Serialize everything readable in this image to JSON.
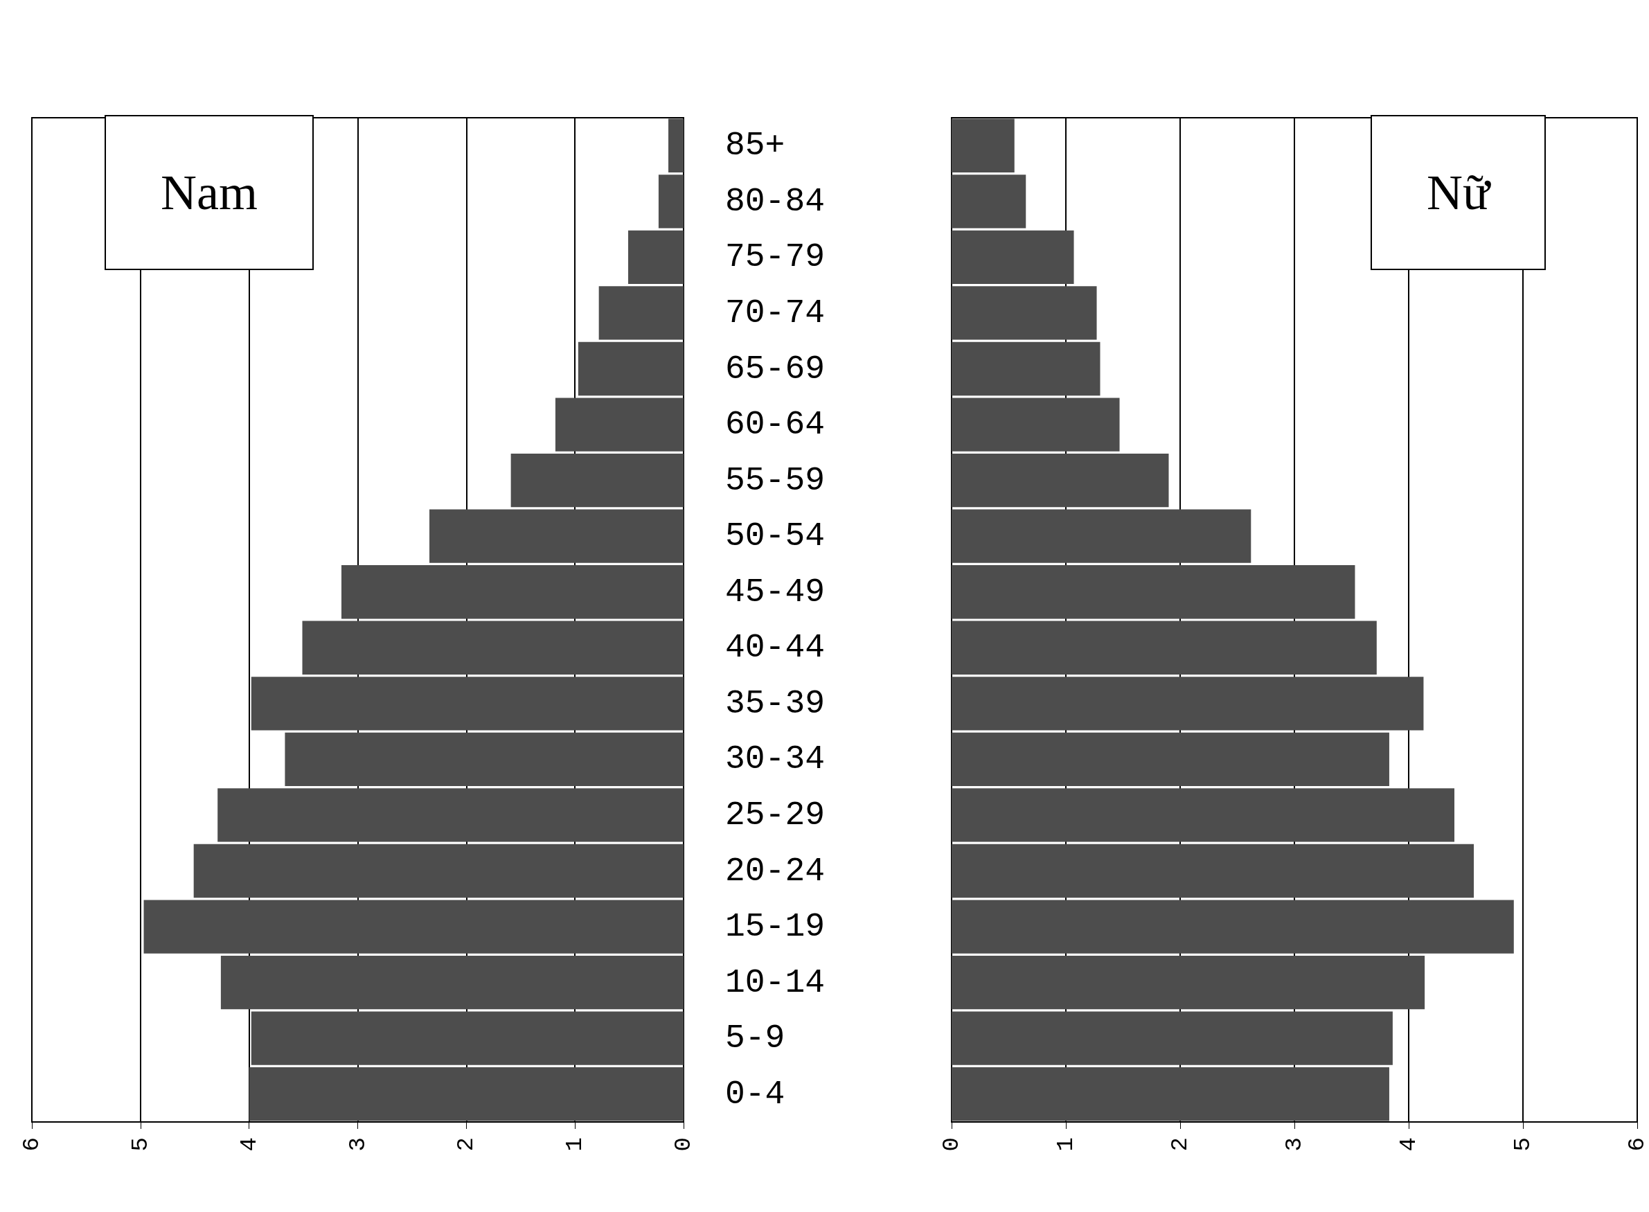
{
  "chart_data": [
    {
      "type": "bar",
      "orientation": "horizontal",
      "title": "Nam",
      "categories": [
        "85+",
        "80-84",
        "75-79",
        "70-74",
        "65-69",
        "60-64",
        "55-59",
        "50-54",
        "45-49",
        "40-44",
        "35-39",
        "30-34",
        "25-29",
        "20-24",
        "15-19",
        "10-14",
        "5-9",
        "0-4"
      ],
      "series": [
        {
          "color": "#4d4d4d",
          "values": [
            0.14,
            0.23,
            0.51,
            0.78,
            0.97,
            1.18,
            1.59,
            2.34,
            3.15,
            3.51,
            3.98,
            3.67,
            4.29,
            4.51,
            4.97,
            4.26,
            3.98,
            4.0
          ]
        }
      ],
      "xlim": [
        6,
        0
      ],
      "xticks": [
        6,
        5,
        4,
        3,
        2,
        1,
        0
      ],
      "grid": "x"
    },
    {
      "type": "bar",
      "orientation": "horizontal",
      "title": "Nữ",
      "categories": [
        null,
        null,
        null,
        null,
        null,
        null,
        null,
        null,
        null,
        null,
        null,
        null,
        null,
        null,
        null,
        null,
        null,
        null
      ],
      "series": [
        {
          "color": "#4d4d4d",
          "values": [
            0.55,
            0.65,
            1.07,
            1.27,
            1.3,
            1.47,
            1.9,
            2.62,
            3.53,
            3.72,
            4.13,
            3.83,
            4.4,
            4.57,
            4.92,
            4.14,
            3.86,
            3.83
          ]
        }
      ],
      "xlim": [
        0,
        6
      ],
      "xticks": [
        0,
        1,
        2,
        3,
        4,
        5,
        6
      ],
      "grid": "x",
      "tick_labels": "x"
    }
  ]
}
